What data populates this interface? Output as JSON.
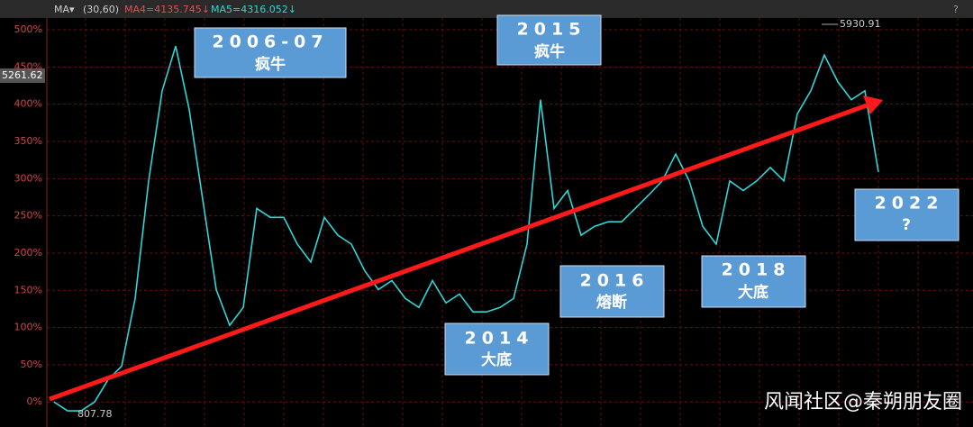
{
  "chart_data": {
    "type": "line",
    "toolbar": {
      "indicator": "MA▾",
      "params": "(30,60)",
      "ma4": "MA4=4135.745↓",
      "ma5": "MA5=4316.052↓",
      "help": "?"
    },
    "series": [
      {
        "color": "#2fd6d6",
        "values": [
          0,
          -12,
          -12,
          0,
          30,
          48,
          139,
          297,
          418,
          478,
          393,
          272,
          151,
          103,
          127,
          260,
          248,
          248,
          212,
          188,
          248,
          224,
          212,
          176,
          151,
          163,
          139,
          127,
          163,
          133,
          145,
          121,
          121,
          127,
          139,
          212,
          406,
          260,
          284,
          224,
          236,
          242,
          242,
          260,
          278,
          297,
          333,
          297,
          236,
          212,
          297,
          284,
          297,
          315,
          297,
          387,
          418,
          466,
          430,
          406,
          418,
          309
        ]
      }
    ],
    "ylim": [
      -30,
      540
    ],
    "yticks": [
      {
        "value": 0,
        "label": "0%"
      },
      {
        "value": 50,
        "label": "50%"
      },
      {
        "value": 100,
        "label": "100%"
      },
      {
        "value": 150,
        "label": "150%"
      },
      {
        "value": 200,
        "label": "200%"
      },
      {
        "value": 250,
        "label": "250%"
      },
      {
        "value": 300,
        "label": "300%"
      },
      {
        "value": 350,
        "label": "350%"
      },
      {
        "value": 400,
        "label": "400%"
      },
      {
        "value": 450,
        "label": "450%"
      },
      {
        "value": 500,
        "label": "500%"
      }
    ],
    "grid": true,
    "price_labels": {
      "current": "5261.62",
      "high": "5930.91",
      "low": "807.78"
    },
    "annotations": [
      {
        "year": "2006-07",
        "note": "疯牛"
      },
      {
        "year": "2015",
        "note": "疯牛"
      },
      {
        "year": "2014",
        "note": "大底"
      },
      {
        "year": "2016",
        "note": "熔断"
      },
      {
        "year": "2018",
        "note": "大底"
      },
      {
        "year": "2022",
        "note": "?"
      }
    ],
    "watermark": "风闻社区@秦朔朋友圈"
  }
}
